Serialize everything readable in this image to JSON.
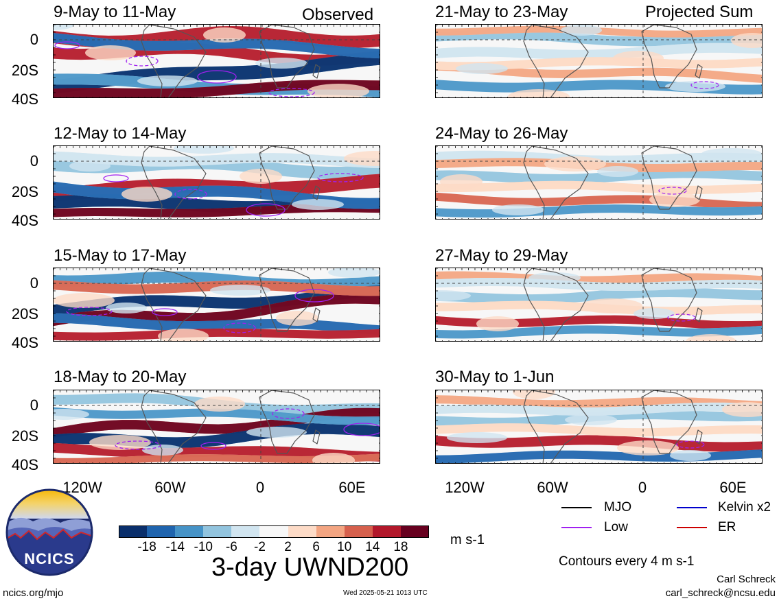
{
  "columns": {
    "left_label": "Observed",
    "right_label": "Projected Sum"
  },
  "panels": {
    "left": [
      {
        "title": "9-May to 11-May"
      },
      {
        "title": "12-May to 14-May"
      },
      {
        "title": "15-May to 17-May"
      },
      {
        "title": "18-May to 20-May"
      }
    ],
    "right": [
      {
        "title": "21-May to 23-May"
      },
      {
        "title": "24-May to 26-May"
      },
      {
        "title": "27-May to 29-May"
      },
      {
        "title": "30-May to 1-Jun"
      }
    ]
  },
  "axes": {
    "y_labels": [
      "0",
      "20S",
      "40S"
    ],
    "x_labels": [
      "120W",
      "60W",
      "0",
      "60E"
    ]
  },
  "colorbar": {
    "colors": [
      "#0a2f6b",
      "#1f64ae",
      "#4693c7",
      "#92c4de",
      "#d1e5f0",
      "#f7f7f7",
      "#fddbc7",
      "#f3a582",
      "#d6604d",
      "#b2182b",
      "#67001f"
    ],
    "ticks": [
      "-18",
      "-14",
      "-10",
      "-6",
      "-2",
      "2",
      "6",
      "10",
      "14",
      "18"
    ],
    "units": "m s-1"
  },
  "title": "3-day UWND200",
  "legend": {
    "items": [
      {
        "label": "MJO",
        "color": "#000000"
      },
      {
        "label": "Kelvin x2",
        "color": "#0000cc"
      },
      {
        "label": "Low",
        "color": "#a020f0"
      },
      {
        "label": "ER",
        "color": "#cc0000"
      }
    ],
    "contours_note": "Contours every 4 m s-1"
  },
  "logo": {
    "text": "NCICS"
  },
  "footer": {
    "left": "ncics.org/mjo",
    "center": "Wed 2025-05-21 1013 UTC",
    "author": "Carl Schreck",
    "email": "carl_schreck@ncsu.edu"
  }
}
